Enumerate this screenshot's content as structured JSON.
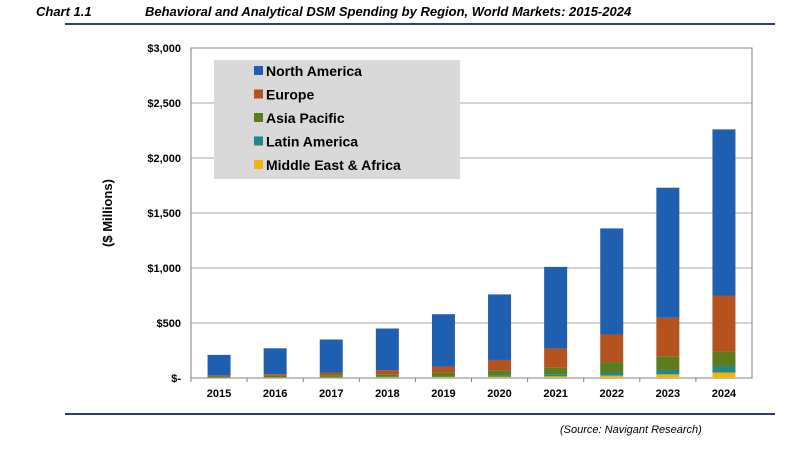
{
  "header": {
    "chart_label": "Chart 1.1",
    "title": "Behavioral and Analytical DSM Spending by Region, World Markets: 2015-2024"
  },
  "source": "(Source: Navigant Research)",
  "colors": {
    "North America": "#1f5fb0",
    "Europe": "#b5531f",
    "Asia Pacific": "#5c7d1f",
    "Latin America": "#1c8a8a",
    "Middle East & Africa": "#f2b40f",
    "legend_bg": "#d9d9d9",
    "grid": "#a6a6a6",
    "rule": "#2e3a7a"
  },
  "chart_data": {
    "type": "bar",
    "stacked": true,
    "categories": [
      "2015",
      "2016",
      "2017",
      "2018",
      "2019",
      "2020",
      "2021",
      "2022",
      "2023",
      "2024"
    ],
    "series": [
      {
        "name": "Middle East & Africa",
        "values": [
          3,
          4,
          5,
          6,
          8,
          11,
          15,
          22,
          33,
          50
        ]
      },
      {
        "name": "Latin America",
        "values": [
          3,
          4,
          5,
          6,
          9,
          13,
          19,
          28,
          40,
          55
        ]
      },
      {
        "name": "Asia Pacific",
        "values": [
          8,
          11,
          16,
          22,
          32,
          45,
          60,
          95,
          125,
          135
        ]
      },
      {
        "name": "Europe",
        "values": [
          10,
          16,
          24,
          38,
          55,
          95,
          175,
          250,
          350,
          510
        ]
      },
      {
        "name": "North America",
        "values": [
          186,
          235,
          300,
          378,
          476,
          596,
          741,
          965,
          1182,
          1510
        ]
      }
    ],
    "legend_order": [
      "North America",
      "Europe",
      "Asia Pacific",
      "Latin America",
      "Middle East & Africa"
    ],
    "ylabel": "($ Millions)",
    "yticks": [
      "$-",
      "$500",
      "$1,000",
      "$1,500",
      "$2,000",
      "$2,500",
      "$3,000"
    ],
    "ylim": [
      0,
      3000
    ],
    "grid": true,
    "legend_position": "top-left"
  }
}
